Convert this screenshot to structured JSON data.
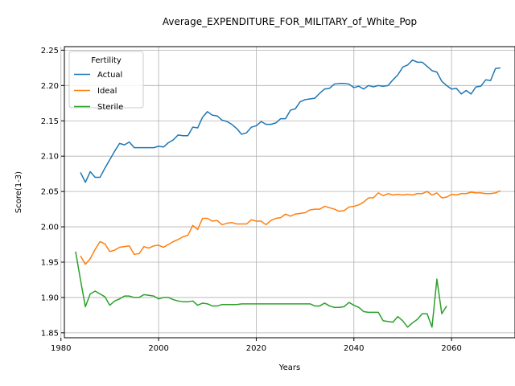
{
  "chart_data": {
    "type": "line",
    "title": "Average_EXPENDITURE_FOR_MILITARY_of_White_Pop",
    "xlabel": "Years",
    "ylabel": "Score(1-3)",
    "xlim": [
      1980.7,
      2073
    ],
    "ylim": [
      1.843,
      2.255
    ],
    "xticks": [
      1980,
      2000,
      2020,
      2040,
      2060
    ],
    "yticks": [
      1.85,
      1.9,
      1.95,
      2.0,
      2.05,
      2.1,
      2.15,
      2.2,
      2.25
    ],
    "grid": true,
    "legend": {
      "title": "Fertility",
      "position": "top-left"
    },
    "series": [
      {
        "name": "Actual",
        "color": "#1f77b4",
        "x": [
          1984,
          1985,
          1986,
          1987,
          1988,
          1989,
          1990,
          1991,
          1992,
          1993,
          1994,
          1995,
          1996,
          1997,
          1998,
          1999,
          2000,
          2001,
          2002,
          2003,
          2004,
          2005,
          2006,
          2007,
          2008,
          2009,
          2010,
          2011,
          2012,
          2013,
          2014,
          2015,
          2016,
          2017,
          2018,
          2019,
          2020,
          2021,
          2022,
          2023,
          2024,
          2025,
          2026,
          2027,
          2028,
          2029,
          2030,
          2031,
          2032,
          2033,
          2034,
          2035,
          2036,
          2037,
          2038,
          2039,
          2040,
          2041,
          2042,
          2043,
          2044,
          2045,
          2046,
          2047,
          2048,
          2049,
          2050,
          2051,
          2052,
          2053,
          2054,
          2055,
          2056,
          2057,
          2058,
          2059,
          2060,
          2061,
          2062,
          2063,
          2064,
          2065,
          2066,
          2067,
          2068,
          2069,
          2070
        ],
        "y": [
          2.077,
          2.063,
          2.078,
          2.07,
          2.07,
          2.083,
          2.095,
          2.107,
          2.118,
          2.116,
          2.12,
          2.112,
          2.112,
          2.112,
          2.112,
          2.112,
          2.114,
          2.113,
          2.119,
          2.123,
          2.13,
          2.129,
          2.129,
          2.141,
          2.14,
          2.155,
          2.163,
          2.158,
          2.157,
          2.151,
          2.149,
          2.145,
          2.139,
          2.131,
          2.133,
          2.141,
          2.143,
          2.149,
          2.145,
          2.145,
          2.147,
          2.153,
          2.153,
          2.165,
          2.167,
          2.177,
          2.18,
          2.181,
          2.182,
          2.189,
          2.195,
          2.196,
          2.202,
          2.203,
          2.203,
          2.202,
          2.197,
          2.199,
          2.195,
          2.2,
          2.198,
          2.2,
          2.199,
          2.2,
          2.208,
          2.215,
          2.226,
          2.229,
          2.236,
          2.233,
          2.233,
          2.227,
          2.221,
          2.219,
          2.206,
          2.2,
          2.195,
          2.196,
          2.188,
          2.193,
          2.188,
          2.198,
          2.199,
          2.208,
          2.207,
          2.224,
          2.225
        ]
      },
      {
        "name": "Ideal",
        "color": "#ff7f0e",
        "x": [
          1984,
          1985,
          1986,
          1987,
          1988,
          1989,
          1990,
          1991,
          1992,
          1993,
          1994,
          1995,
          1996,
          1997,
          1998,
          1999,
          2000,
          2001,
          2002,
          2003,
          2004,
          2005,
          2006,
          2007,
          2008,
          2009,
          2010,
          2011,
          2012,
          2013,
          2014,
          2015,
          2016,
          2017,
          2018,
          2019,
          2020,
          2021,
          2022,
          2023,
          2024,
          2025,
          2026,
          2027,
          2028,
          2029,
          2030,
          2031,
          2032,
          2033,
          2034,
          2035,
          2036,
          2037,
          2038,
          2039,
          2040,
          2041,
          2042,
          2043,
          2044,
          2045,
          2046,
          2047,
          2048,
          2049,
          2050,
          2051,
          2052,
          2053,
          2054,
          2055,
          2056,
          2057,
          2058,
          2059,
          2060,
          2061,
          2062,
          2063,
          2064,
          2065,
          2066,
          2067,
          2068,
          2069,
          2070
        ],
        "y": [
          1.959,
          1.947,
          1.955,
          1.968,
          1.979,
          1.976,
          1.965,
          1.967,
          1.971,
          1.972,
          1.973,
          1.961,
          1.962,
          1.972,
          1.97,
          1.973,
          1.974,
          1.971,
          1.975,
          1.979,
          1.982,
          1.986,
          1.988,
          2.002,
          1.996,
          2.012,
          2.012,
          2.008,
          2.009,
          2.003,
          2.005,
          2.006,
          2.004,
          2.004,
          2.004,
          2.01,
          2.008,
          2.008,
          2.003,
          2.009,
          2.012,
          2.013,
          2.018,
          2.015,
          2.018,
          2.019,
          2.02,
          2.024,
          2.025,
          2.025,
          2.029,
          2.027,
          2.025,
          2.022,
          2.023,
          2.028,
          2.029,
          2.031,
          2.035,
          2.041,
          2.041,
          2.048,
          2.044,
          2.047,
          2.045,
          2.046,
          2.045,
          2.046,
          2.045,
          2.047,
          2.047,
          2.05,
          2.045,
          2.048,
          2.041,
          2.042,
          2.046,
          2.045,
          2.047,
          2.047,
          2.049,
          2.048,
          2.048,
          2.047,
          2.047,
          2.048,
          2.051
        ]
      },
      {
        "name": "Sterile",
        "color": "#2ca02c",
        "x": [
          1983,
          1984,
          1985,
          1986,
          1987,
          1988,
          1989,
          1990,
          1991,
          1992,
          1993,
          1994,
          1995,
          1996,
          1997,
          1998,
          1999,
          2000,
          2001,
          2002,
          2003,
          2004,
          2005,
          2006,
          2007,
          2008,
          2009,
          2010,
          2011,
          2012,
          2013,
          2014,
          2015,
          2016,
          2017,
          2018,
          2019,
          2020,
          2021,
          2022,
          2023,
          2024,
          2025,
          2026,
          2027,
          2028,
          2029,
          2030,
          2031,
          2032,
          2033,
          2034,
          2035,
          2036,
          2037,
          2038,
          2039,
          2040,
          2041,
          2042,
          2043,
          2044,
          2045,
          2046,
          2047,
          2048,
          2049,
          2050,
          2051,
          2052,
          2053,
          2054,
          2055,
          2056,
          2057,
          2058,
          2059
        ],
        "y": [
          1.965,
          1.925,
          1.887,
          1.905,
          1.909,
          1.905,
          1.901,
          1.889,
          1.895,
          1.898,
          1.902,
          1.902,
          1.9,
          1.9,
          1.904,
          1.903,
          1.902,
          1.898,
          1.9,
          1.9,
          1.897,
          1.895,
          1.894,
          1.894,
          1.895,
          1.889,
          1.892,
          1.891,
          1.888,
          1.888,
          1.89,
          1.89,
          1.89,
          1.89,
          1.891,
          1.891,
          1.891,
          1.891,
          1.891,
          1.891,
          1.891,
          1.891,
          1.891,
          1.891,
          1.891,
          1.891,
          1.891,
          1.891,
          1.891,
          1.888,
          1.888,
          1.892,
          1.888,
          1.886,
          1.886,
          1.887,
          1.893,
          1.889,
          1.886,
          1.88,
          1.879,
          1.879,
          1.879,
          1.867,
          1.866,
          1.865,
          1.873,
          1.867,
          1.858,
          1.864,
          1.869,
          1.877,
          1.877,
          1.858,
          1.926,
          1.877,
          1.888
        ]
      }
    ]
  }
}
